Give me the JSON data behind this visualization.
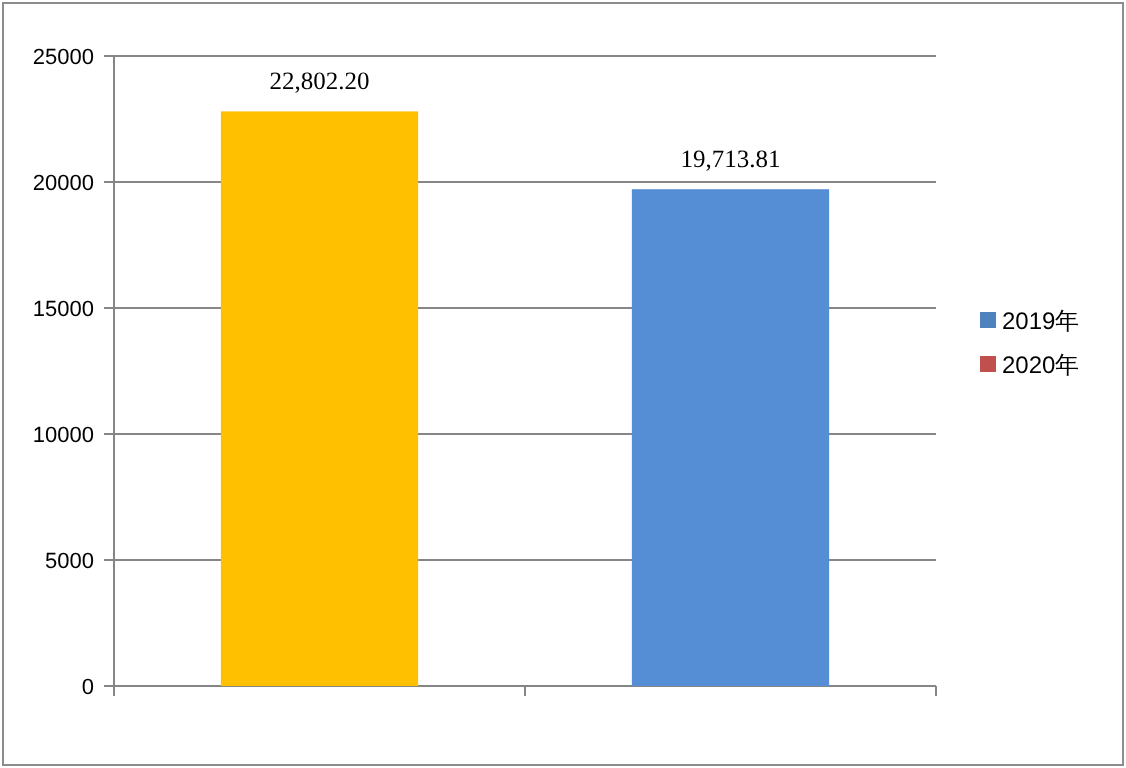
{
  "chart_data": {
    "type": "bar",
    "categories": [
      null,
      null
    ],
    "stacked": true,
    "series": [
      {
        "name": "2019年",
        "color": "#4f81bd",
        "colors": [
          "#ffc000",
          null
        ],
        "values": [
          22802.2,
          null
        ],
        "value_labels": [
          "22,802.20",
          null
        ]
      },
      {
        "name": "2020年",
        "color": "#c0504d",
        "colors": [
          null,
          "#558ed5"
        ],
        "values": [
          null,
          19713.81
        ],
        "value_labels": [
          null,
          "19,713.81"
        ]
      }
    ],
    "ylim": [
      0,
      25000
    ],
    "yticks": [
      0,
      5000,
      10000,
      15000,
      20000,
      25000
    ],
    "grid": "y",
    "legend": "right"
  }
}
